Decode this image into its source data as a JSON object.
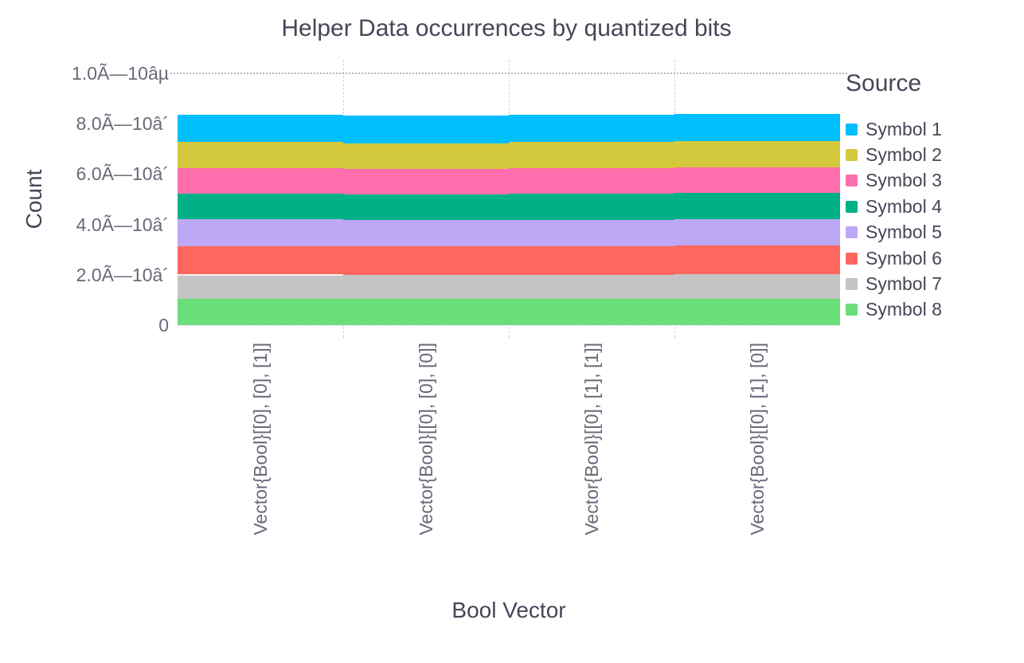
{
  "chart_data": {
    "type": "bar",
    "stacked": true,
    "title": "Helper Data occurrences by quantized bits",
    "xlabel": "Bool Vector",
    "ylabel": "Count",
    "legend_title": "Source",
    "legend_position": "right",
    "grid": true,
    "bar_width_fraction": 1.0,
    "ylim": [
      0,
      100000
    ],
    "yticks": {
      "values": [
        0,
        20000,
        40000,
        60000,
        80000,
        100000
      ],
      "labels": [
        "0",
        "2.0Ã—10â´",
        "4.0Ã—10â´",
        "6.0Ã—10â´",
        "8.0Ã—10â´",
        "1.0Ã—10âµ"
      ]
    },
    "categories": [
      "Vector{Bool}[[0], [0], [1]]",
      "Vector{Bool}[[0], [0], [0]]",
      "Vector{Bool}[[0], [1], [1]]",
      "Vector{Bool}[[0], [1], [0]]"
    ],
    "series": [
      {
        "name": "Symbol 1",
        "color": "#00BFFF",
        "values": [
          10650,
          10900,
          10700,
          10850
        ]
      },
      {
        "name": "Symbol 2",
        "color": "#D4C83C",
        "values": [
          10550,
          10150,
          10600,
          10450
        ]
      },
      {
        "name": "Symbol 3",
        "color": "#FF6FAE",
        "values": [
          10150,
          10200,
          10100,
          10150
        ]
      },
      {
        "name": "Symbol 4",
        "color": "#00B188",
        "values": [
          10200,
          10150,
          10300,
          10250
        ]
      },
      {
        "name": "Symbol 5",
        "color": "#BDA8F5",
        "values": [
          10550,
          10500,
          10500,
          10600
        ]
      },
      {
        "name": "Symbol 6",
        "color": "#FF675E",
        "values": [
          11500,
          11300,
          11450,
          11400
        ]
      },
      {
        "name": "Symbol 7",
        "color": "#C4C4C4",
        "values": [
          9500,
          9600,
          9400,
          9800
        ]
      },
      {
        "name": "Symbol 8",
        "color": "#68DF79",
        "values": [
          10450,
          10300,
          10500,
          10350
        ]
      }
    ],
    "style": {
      "background": "#ffffff",
      "title_color": "#4c4358",
      "tick_color": "#6d6779",
      "grid_dash_color": "#cfccdd",
      "grid_dot_color": "#b7b3c7"
    }
  }
}
